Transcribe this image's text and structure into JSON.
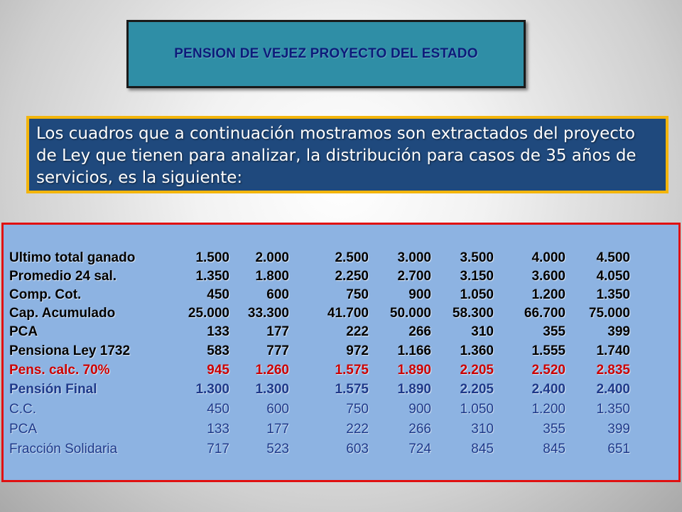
{
  "title": "PENSION DE VEJEZ PROYECTO DEL ESTADO",
  "intro": "Los cuadros que a continuación mostramos son extractados del proyecto de Ley que tienen para analizar, la distribución para casos de 35 años de servicios, es la siguiente:",
  "table": {
    "rows": [
      {
        "label": "Ultimo total ganado",
        "style": "dark",
        "values": [
          "1.500",
          "2.000",
          "2.500",
          "3.000",
          "3.500",
          "4.000",
          "4.500"
        ]
      },
      {
        "label": "Promedio 24 sal.",
        "style": "dark",
        "values": [
          "1.350",
          "1.800",
          "2.250",
          "2.700",
          "3.150",
          "3.600",
          "4.050"
        ]
      },
      {
        "label": "Comp. Cot.",
        "style": "dark",
        "values": [
          "450",
          "600",
          "750",
          "900",
          "1.050",
          "1.200",
          "1.350"
        ]
      },
      {
        "label": "Cap. Acumulado",
        "style": "dark",
        "values": [
          "25.000",
          "33.300",
          "41.700",
          "50.000",
          "58.300",
          "66.700",
          "75.000"
        ]
      },
      {
        "label": "PCA",
        "style": "dark",
        "values": [
          "133",
          "177",
          "222",
          "266",
          "310",
          "355",
          "399"
        ]
      },
      {
        "label": "Pensiona Ley 1732",
        "style": "dark",
        "values": [
          "583",
          "777",
          "972",
          "1.166",
          "1.360",
          "1.555",
          "1.740"
        ]
      },
      {
        "label": "Pens. calc. 70%",
        "style": "red",
        "values": [
          "945",
          "1.260",
          "1.575",
          "1.890",
          "2.205",
          "2.520",
          "2.835"
        ]
      },
      {
        "label": "Pensión Final",
        "style": "navy",
        "values": [
          "1.300",
          "1.300",
          "1.575",
          "1.890",
          "2.205",
          "2.400",
          "2.400"
        ]
      },
      {
        "label": "C.C.",
        "style": "blue",
        "values": [
          "450",
          "600",
          "750",
          "900",
          "1.050",
          "1.200",
          "1.350"
        ]
      },
      {
        "label": "PCA",
        "style": "blue",
        "values": [
          "133",
          "177",
          "222",
          "266",
          "310",
          "355",
          "399"
        ]
      },
      {
        "label": "Fracción Solidaria",
        "style": "blue",
        "values": [
          "717",
          "523",
          "603",
          "724",
          "845",
          "845",
          "651"
        ]
      }
    ]
  },
  "colors": {
    "title_bg": "#2f8ea6",
    "title_text": "#0d1b7a",
    "intro_bg": "#1f497d",
    "intro_border": "#f3b50c",
    "table_bg": "#8db3e2",
    "table_border": "#e01010",
    "highlight_red": "#cc0000",
    "highlight_navy": "#1f3a8a"
  }
}
